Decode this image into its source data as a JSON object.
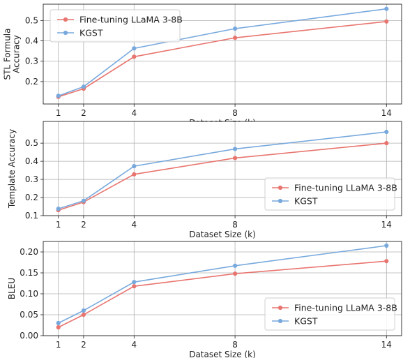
{
  "figure": {
    "panels": [
      "stl-formula-accuracy",
      "template-accuracy",
      "bleu"
    ]
  },
  "chart_data": [
    {
      "type": "line",
      "id": "stl-formula-accuracy",
      "title": "",
      "xlabel": "Dataset Size (k)",
      "ylabel": [
        "STL Formula",
        "Accuracy"
      ],
      "x": [
        1,
        2,
        4,
        8,
        14
      ],
      "x_ticks": [
        1,
        2,
        4,
        8,
        14
      ],
      "x_tick_labels": [
        "1",
        "2",
        "4",
        "8",
        "14"
      ],
      "xlim": [
        0.4,
        14.6
      ],
      "ylim": [
        0.09,
        0.58
      ],
      "y_ticks": [
        0.2,
        0.3,
        0.4,
        0.5
      ],
      "y_tick_labels": [
        "0.2",
        "0.3",
        "0.4",
        "0.5"
      ],
      "grid": true,
      "legend_position": "top-left",
      "series": [
        {
          "name": "Fine-tuning LLaMA 3-8B",
          "color": "#e8756f",
          "values": [
            0.125,
            0.165,
            0.322,
            0.415,
            0.495
          ]
        },
        {
          "name": "KGST",
          "color": "#78a9dd",
          "values": [
            0.13,
            0.175,
            0.363,
            0.46,
            0.557
          ]
        }
      ]
    },
    {
      "type": "line",
      "id": "template-accuracy",
      "title": "",
      "xlabel": "Dataset Size (k)",
      "ylabel": [
        "Template Accuracy"
      ],
      "x": [
        1,
        2,
        4,
        8,
        14
      ],
      "x_ticks": [
        1,
        2,
        4,
        8,
        14
      ],
      "x_tick_labels": [
        "1",
        "2",
        "4",
        "8",
        "14"
      ],
      "xlim": [
        0.4,
        14.6
      ],
      "ylim": [
        0.1,
        0.62
      ],
      "y_ticks": [
        0.1,
        0.2,
        0.3,
        0.4,
        0.5
      ],
      "y_tick_labels": [
        "0.1",
        "0.2",
        "0.3",
        "0.4",
        "0.5"
      ],
      "grid": true,
      "legend_position": "bottom-right",
      "series": [
        {
          "name": "Fine-tuning LLaMA 3-8B",
          "color": "#e8756f",
          "values": [
            0.13,
            0.175,
            0.328,
            0.418,
            0.5
          ]
        },
        {
          "name": "KGST",
          "color": "#78a9dd",
          "values": [
            0.138,
            0.182,
            0.373,
            0.468,
            0.562
          ]
        }
      ]
    },
    {
      "type": "line",
      "id": "bleu",
      "title": "",
      "xlabel": "Dataset Size (k)",
      "ylabel": [
        "BLEU"
      ],
      "x": [
        1,
        2,
        4,
        8,
        14
      ],
      "x_ticks": [
        1,
        2,
        4,
        8,
        14
      ],
      "x_tick_labels": [
        "1",
        "2",
        "4",
        "8",
        "14"
      ],
      "xlim": [
        0.4,
        14.6
      ],
      "ylim": [
        0.0,
        0.225
      ],
      "y_ticks": [
        0.0,
        0.05,
        0.1,
        0.15,
        0.2
      ],
      "y_tick_labels": [
        "0.00",
        "0.05",
        "0.10",
        "0.15",
        "0.20"
      ],
      "grid": true,
      "legend_position": "bottom-right",
      "series": [
        {
          "name": "Fine-tuning LLaMA 3-8B",
          "color": "#e8756f",
          "values": [
            0.02,
            0.05,
            0.118,
            0.148,
            0.178
          ]
        },
        {
          "name": "KGST",
          "color": "#78a9dd",
          "values": [
            0.03,
            0.06,
            0.128,
            0.167,
            0.215
          ]
        }
      ]
    }
  ]
}
